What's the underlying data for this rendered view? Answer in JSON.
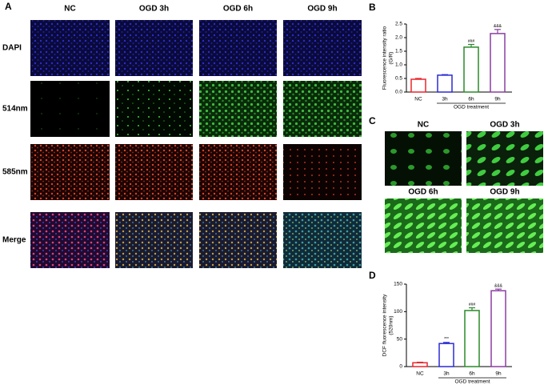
{
  "panel_a": {
    "label": "A",
    "columns": [
      "NC",
      "OGD 3h",
      "OGD 6h",
      "OGD 9h"
    ],
    "rows": [
      "DAPI",
      "514nm",
      "585nm",
      "Merge"
    ]
  },
  "panel_c": {
    "label": "C",
    "images": [
      "NC",
      "OGD 3h",
      "OGD 6h",
      "OGD 9h"
    ]
  },
  "chart_data": [
    {
      "type": "bar",
      "panel": "B",
      "ylabel": [
        "Fluorescence intensity ratio",
        "(G/R)"
      ],
      "xlabel": "OGD treatment",
      "categories": [
        "NC",
        "3h",
        "6h",
        "9h"
      ],
      "values": [
        0.47,
        0.62,
        1.65,
        2.15
      ],
      "errors": [
        0.03,
        0.02,
        0.1,
        0.15
      ],
      "annotations": [
        null,
        null,
        "###",
        "&&&"
      ],
      "colors": [
        "#e8262d",
        "#2a2ad4",
        "#2a8a2a",
        "#8a3fa0"
      ],
      "ylim": [
        0,
        2.5
      ],
      "yticks": [
        {
          "value": 0,
          "label": "0.0"
        },
        0.5,
        {
          "value": 1,
          "label": "1.0"
        },
        1.5,
        {
          "value": 2,
          "label": "2.0"
        },
        2.5
      ]
    },
    {
      "type": "bar",
      "panel": "D",
      "ylabel": [
        "DCF fluorescence intensity",
        "(520nm)"
      ],
      "xlabel": "OGD treatment",
      "categories": [
        "NC",
        "3h",
        "6h",
        "9h"
      ],
      "values": [
        7,
        42,
        102,
        138
      ],
      "errors": [
        1,
        2,
        5,
        3
      ],
      "annotations": [
        null,
        "***",
        "###",
        "&&&"
      ],
      "colors": [
        "#e8262d",
        "#2a2ad4",
        "#2a8a2a",
        "#8a3fa0"
      ],
      "ylim": [
        0,
        150
      ],
      "yticks": [
        0,
        50,
        100,
        150
      ]
    }
  ]
}
